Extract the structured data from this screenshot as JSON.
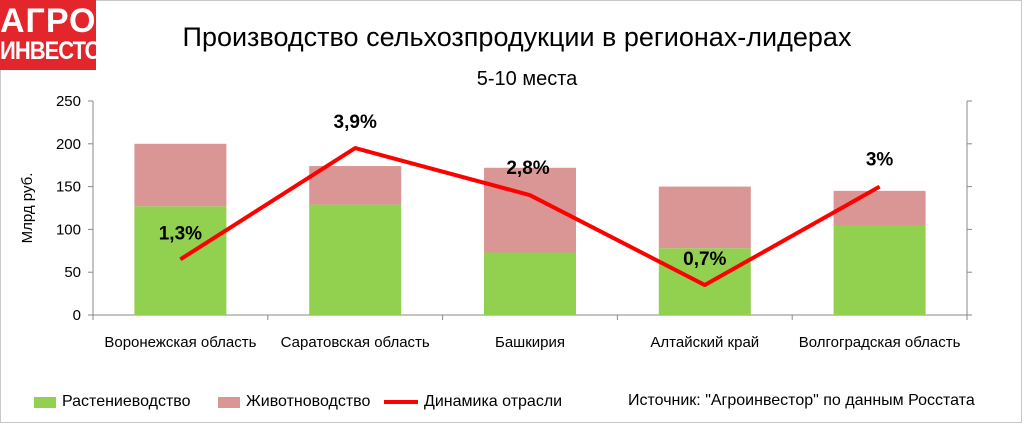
{
  "logo": {
    "line1": "АГРО",
    "line2": "ИНВЕСТОР"
  },
  "title": "Производство сельхозпродукции в регионах-лидерах",
  "subtitle": "5-10 места",
  "source": "Источник: \"Агроинвестор\" по данным Росстата",
  "colors": {
    "crop": "#92d050",
    "livestock": "#d99694",
    "dynamics": "#ff0000",
    "logo": "#e3262b"
  },
  "chart_data": {
    "type": "bar",
    "stacked": true,
    "categories": [
      "Воронежская область",
      "Саратовская область",
      "Башкирия",
      "Алтайский край",
      "Волгоградская область"
    ],
    "series": [
      {
        "name": "Растениеводство",
        "type": "bar",
        "values": [
          127,
          129,
          73,
          78,
          104
        ]
      },
      {
        "name": "Животноводство",
        "type": "bar",
        "values": [
          73,
          45,
          99,
          72,
          41
        ]
      },
      {
        "name": "Динамика отрасли",
        "type": "line",
        "values": [
          1.3,
          3.9,
          2.8,
          0.7,
          3.0
        ]
      }
    ],
    "line_labels": [
      "1,3%",
      "3,9%",
      "2,8%",
      "0,7%",
      "3%"
    ],
    "ylabel": "Млрд руб.",
    "ylim": [
      0,
      250
    ],
    "yticks": [
      "0",
      "50",
      "100",
      "150",
      "200",
      "250"
    ],
    "secondary_ylim": [
      0,
      5
    ],
    "grid": false,
    "legend_position": "bottom"
  }
}
